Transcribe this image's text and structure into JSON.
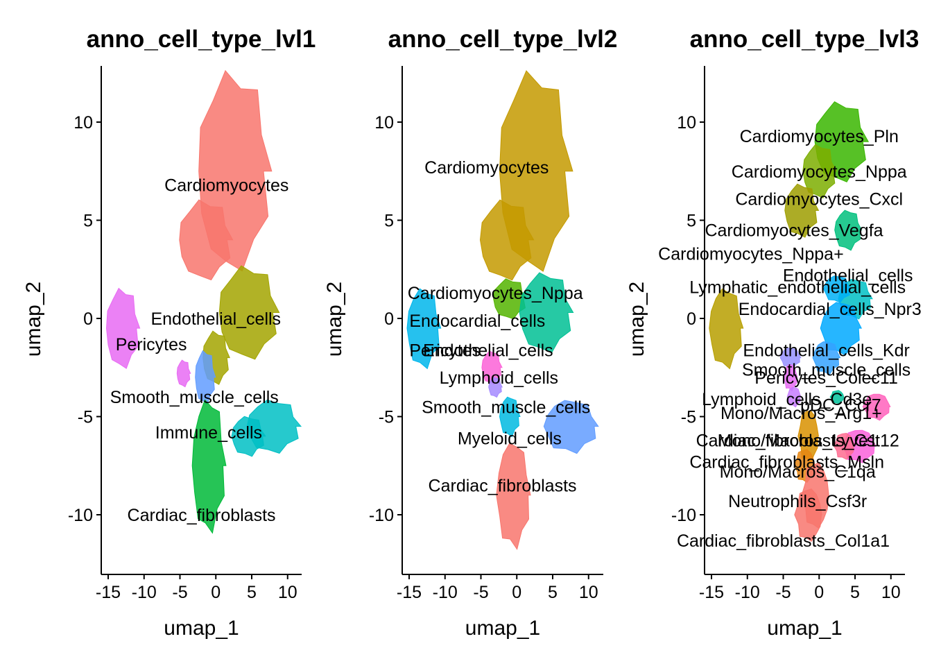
{
  "figure_title": "",
  "chart_data": [
    {
      "type": "scatter",
      "title": "anno_cell_type_lvl1",
      "xlabel": "umap_1",
      "ylabel": "umap_2",
      "xlim": [
        -16,
        12
      ],
      "ylim": [
        -13,
        13
      ],
      "xticks": [
        -15,
        -10,
        -5,
        0,
        5,
        10
      ],
      "yticks": [
        -10,
        -5,
        0,
        5,
        10
      ],
      "xtick_labels": [
        "-15",
        "-10",
        "-5",
        "0",
        "5",
        "10"
      ],
      "ytick_labels": [
        "-10",
        "-5",
        "0",
        "5",
        "10"
      ],
      "grid": false,
      "legend": "none",
      "series": [
        {
          "name": "Cardiomyocytes",
          "color": "#F8766D",
          "x": 1.5,
          "y": 6.8
        },
        {
          "name": "Endothelial_cells",
          "color": "#A3A500",
          "x": 0.0,
          "y": 0.0
        },
        {
          "name": "Pericytes",
          "color": "#E76BF3",
          "x": -9.0,
          "y": -1.3
        },
        {
          "name": "Smooth_muscle_cells",
          "color": "#619CFF",
          "x": -3.0,
          "y": -4.0
        },
        {
          "name": "Immune_cells",
          "color": "#00BFC4",
          "x": -1.0,
          "y": -5.8
        },
        {
          "name": "Cardiac_fibroblasts",
          "color": "#00BA38",
          "x": -2.0,
          "y": -10.0
        }
      ]
    },
    {
      "type": "scatter",
      "title": "anno_cell_type_lvl2",
      "xlabel": "umap_1",
      "ylabel": "umap_2",
      "xlim": [
        -16,
        12
      ],
      "ylim": [
        -13,
        13
      ],
      "xticks": [
        -15,
        -10,
        -5,
        0,
        5,
        10
      ],
      "yticks": [
        -10,
        -5,
        0,
        5,
        10
      ],
      "xtick_labels": [
        "-15",
        "-10",
        "-5",
        "0",
        "5",
        "10"
      ],
      "ytick_labels": [
        "-10",
        "-5",
        "0",
        "5",
        "10"
      ],
      "grid": false,
      "legend": "none",
      "series": [
        {
          "name": "Cardiomyocytes",
          "color": "#C49A00",
          "x": -4.2,
          "y": 7.7
        },
        {
          "name": "Cardiomyocytes_Nppa",
          "color": "#53B400",
          "x": -3.0,
          "y": 1.3
        },
        {
          "name": "Endocardial_cells",
          "color": "#00C094",
          "x": -5.5,
          "y": -0.1
        },
        {
          "name": "Pericytes",
          "color": "#FB61D7",
          "x": -10.0,
          "y": -1.6
        },
        {
          "name": "Endothelial_cells",
          "color": "#00B6EB",
          "x": -4.0,
          "y": -1.6
        },
        {
          "name": "Lymphoid_cells",
          "color": "#A58AFF",
          "x": -2.5,
          "y": -3.0
        },
        {
          "name": "Smooth_muscle_cells",
          "color": "#00BAE0",
          "x": -1.5,
          "y": -4.5
        },
        {
          "name": "Myeloid_cells",
          "color": "#619CFF",
          "x": -1.0,
          "y": -6.1
        },
        {
          "name": "Cardiac_fibroblasts",
          "color": "#F8766D",
          "x": -2.0,
          "y": -8.5
        }
      ]
    },
    {
      "type": "scatter",
      "title": "anno_cell_type_lvl3",
      "xlabel": "umap_1",
      "ylabel": "umap_2",
      "xlim": [
        -16,
        12
      ],
      "ylim": [
        -13,
        13
      ],
      "xticks": [
        -15,
        -10,
        -5,
        0,
        5,
        10
      ],
      "yticks": [
        -10,
        -5,
        0,
        5,
        10
      ],
      "xtick_labels": [
        "-15",
        "-10",
        "-5",
        "0",
        "5",
        "10"
      ],
      "ytick_labels": [
        "-10",
        "-5",
        "0",
        "5",
        "10"
      ],
      "grid": false,
      "legend": "none",
      "series": [
        {
          "name": "Cardiomyocytes_Pln",
          "color": "#39B600",
          "x": 0.0,
          "y": 9.3
        },
        {
          "name": "Cardiomyocytes_Nppa",
          "color": "#7CAE00",
          "x": 0.0,
          "y": 7.5
        },
        {
          "name": "Cardiomyocytes_Cxcl",
          "color": "#9E9E00",
          "x": 0.0,
          "y": 6.1
        },
        {
          "name": "Cardiomyocytes_Vegfa",
          "color": "#00BF7D",
          "x": -3.5,
          "y": 4.5
        },
        {
          "name": "Cardiomyocytes_Nppa+",
          "color": "#B79F00",
          "x": -9.5,
          "y": 3.3
        },
        {
          "name": "Endothelial_cells",
          "color": "#00BFC4",
          "x": 4.0,
          "y": 2.2
        },
        {
          "name": "Lymphatic_endothelial_cells",
          "color": "#00B0F6",
          "x": -3.0,
          "y": 1.6
        },
        {
          "name": "Endocardial_cells_Npr3",
          "color": "#00A9FF",
          "x": 1.5,
          "y": 0.5
        },
        {
          "name": "Endothelial_cells_Kdr",
          "color": "#35A2FF",
          "x": 1.0,
          "y": -1.6
        },
        {
          "name": "Smooth_muscle_cells",
          "color": "#9590FF",
          "x": 1.0,
          "y": -2.6
        },
        {
          "name": "Pericytes_Colec11",
          "color": "#E76BF3",
          "x": 1.0,
          "y": -3.0
        },
        {
          "name": "Lymphoid_cells_Cd3e",
          "color": "#C77CFF",
          "x": -4.5,
          "y": -4.1
        },
        {
          "name": "pDC_Ccr7",
          "color": "#FF62BC",
          "x": 3.0,
          "y": -4.4
        },
        {
          "name": "Mono/Macros_Arg1+",
          "color": "#FA62DB",
          "x": -2.5,
          "y": -4.8
        },
        {
          "name": "Cardiac_fibroblasts_Cst12",
          "color": "#D89000",
          "x": -3.0,
          "y": -6.2
        },
        {
          "name": "Mono/Macros_Lyve1",
          "color": "#FF6C91",
          "x": -3.0,
          "y": -6.2
        },
        {
          "name": "Cardiac_fibroblasts_Msln",
          "color": "#E68613",
          "x": -4.5,
          "y": -7.3
        },
        {
          "name": "Mono/Macros_C1qa",
          "color": "#F8766D",
          "x": -3.0,
          "y": -7.8
        },
        {
          "name": "Neutrophils_Csf3r",
          "color": "#00C19A",
          "x": -3.0,
          "y": -9.3
        },
        {
          "name": "Cardiac_fibroblasts_Col1a1",
          "color": "#F8766D",
          "x": -5.0,
          "y": -11.3
        }
      ]
    }
  ]
}
